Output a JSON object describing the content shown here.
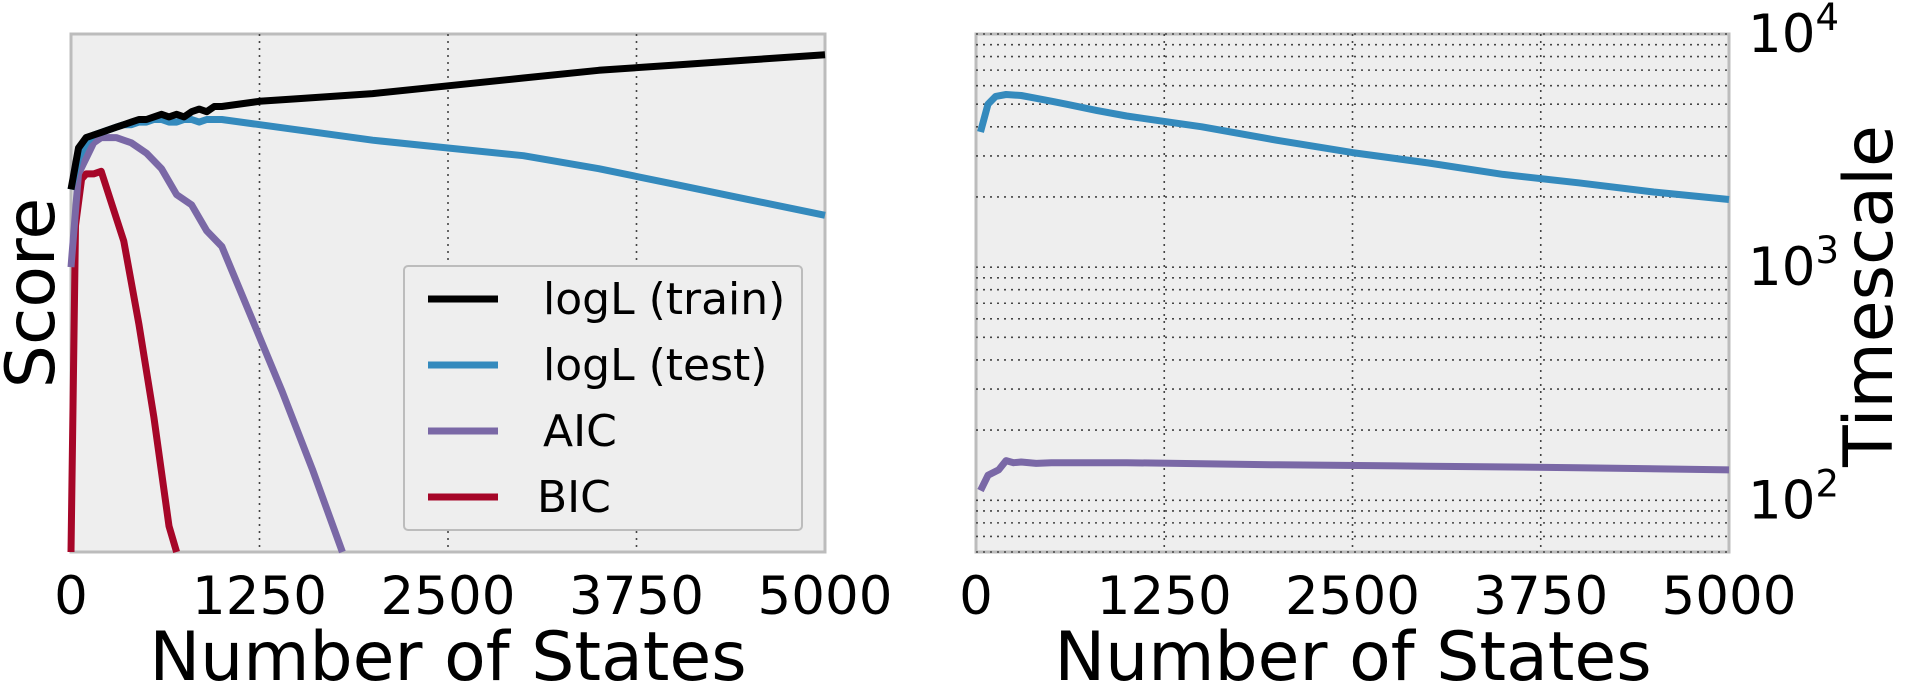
{
  "chart_data": [
    {
      "type": "line",
      "xlabel": "Number of States",
      "ylabel": "Score",
      "xlim": [
        0,
        5000
      ],
      "xticks": [
        "0",
        "1250",
        "2500",
        "3750",
        "5000"
      ],
      "ylim": [
        0,
        100
      ],
      "y_tick_labels_shown": false,
      "grid": "vertical dotted",
      "legend_position": "lower-right",
      "series": [
        {
          "name": "logL (train)",
          "color": "#000000",
          "x": [
            0,
            50,
            100,
            150,
            200,
            250,
            300,
            350,
            400,
            450,
            500,
            550,
            600,
            650,
            700,
            750,
            800,
            850,
            900,
            950,
            1000,
            1250,
            1500,
            2000,
            2500,
            3000,
            3500,
            4000,
            4500,
            5000
          ],
          "y": [
            70,
            78,
            80,
            80.5,
            81,
            81.5,
            82,
            82.5,
            83,
            83.5,
            83.5,
            84,
            84.5,
            84,
            84.5,
            84,
            85,
            85.5,
            85,
            86,
            86,
            87,
            87.5,
            88.5,
            90,
            91.5,
            93,
            94,
            95,
            96
          ]
        },
        {
          "name": "logL (test)",
          "color": "#348abd",
          "x": [
            0,
            50,
            100,
            150,
            200,
            250,
            300,
            350,
            400,
            450,
            500,
            550,
            600,
            650,
            700,
            750,
            800,
            850,
            900,
            950,
            1000,
            1500,
            2000,
            2500,
            3000,
            3500,
            4000,
            4500,
            5000
          ],
          "y": [
            70,
            76,
            79,
            80.5,
            81,
            81.5,
            82,
            82.5,
            82.5,
            83,
            83,
            83.5,
            83.5,
            83,
            83,
            83.5,
            83.5,
            83,
            83.5,
            83.5,
            83.5,
            81.5,
            79.5,
            78,
            76.5,
            74,
            71,
            68,
            65
          ]
        },
        {
          "name": "AIC",
          "color": "#7a68a6",
          "x": [
            0,
            50,
            100,
            150,
            200,
            250,
            300,
            400,
            500,
            600,
            700,
            800,
            900,
            1000,
            1200,
            1400,
            1600,
            1800
          ],
          "y": [
            55,
            73,
            76,
            79,
            80,
            80,
            80,
            79,
            77,
            74,
            69,
            67,
            62,
            59,
            45,
            31,
            16,
            0
          ]
        },
        {
          "name": "BIC",
          "color": "#a60628",
          "x": [
            0,
            30,
            70,
            100,
            150,
            200,
            250,
            350,
            450,
            550,
            650,
            700
          ],
          "y": [
            0,
            63,
            72,
            73,
            73,
            73.5,
            69,
            60,
            44,
            26,
            5,
            0
          ]
        }
      ]
    },
    {
      "type": "line",
      "xlabel": "Number of States",
      "ylabel": "Timescale",
      "yscale": "log",
      "xlim": [
        0,
        5000
      ],
      "xticks": [
        "0",
        "1250",
        "2500",
        "3750",
        "5000"
      ],
      "ylim": [
        60,
        10000
      ],
      "yticks": [
        {
          "value": 100,
          "base": "10",
          "exp": "2"
        },
        {
          "value": 1000,
          "base": "10",
          "exp": "3"
        },
        {
          "value": 10000,
          "base": "10",
          "exp": "4"
        }
      ],
      "yaxis_side": "right",
      "grid": "dotted, major and minor",
      "series": [
        {
          "color": "#348abd",
          "x": [
            30,
            80,
            130,
            200,
            300,
            400,
            500,
            600,
            800,
            1000,
            1500,
            2000,
            2500,
            3000,
            3500,
            4000,
            4500,
            5000
          ],
          "y": [
            3800,
            5000,
            5400,
            5500,
            5450,
            5300,
            5150,
            5000,
            4700,
            4450,
            4000,
            3500,
            3100,
            2800,
            2500,
            2300,
            2100,
            1950
          ]
        },
        {
          "color": "#7a68a6",
          "x": [
            30,
            80,
            150,
            200,
            250,
            300,
            400,
            500,
            700,
            1000,
            2000,
            3000,
            4000,
            5000
          ],
          "y": [
            110,
            128,
            135,
            148,
            145,
            146,
            144,
            145,
            145,
            145,
            142,
            140,
            138,
            135
          ]
        }
      ]
    }
  ]
}
